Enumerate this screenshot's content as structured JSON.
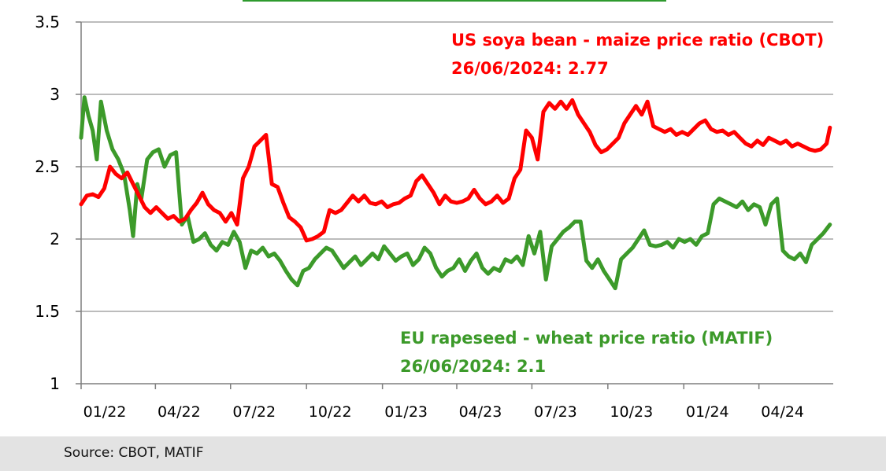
{
  "source_text": "Source: CBOT, MATIF",
  "chart_data": {
    "type": "line",
    "ylim": [
      1,
      3.5
    ],
    "yticks": [
      "1",
      "1.5",
      "2",
      "2.5",
      "3",
      "3.5"
    ],
    "ytick_values": [
      1,
      1.5,
      2,
      2.5,
      3,
      3.5
    ],
    "xlim": [
      "2022-01-01",
      "2024-06-30"
    ],
    "xticks": [
      "01/22",
      "04/22",
      "07/22",
      "10/22",
      "01/23",
      "04/23",
      "07/23",
      "10/23",
      "01/24",
      "04/24"
    ],
    "xtick_dates": [
      "2022-01-01",
      "2022-04-01",
      "2022-07-01",
      "2022-10-01",
      "2023-01-01",
      "2023-04-01",
      "2023-07-01",
      "2023-10-01",
      "2024-01-01",
      "2024-04-01"
    ],
    "grid": "horizontal",
    "annotations": [
      {
        "series": "us",
        "line1": "US soya bean - maize price ratio (CBOT)",
        "line2": "26/06/2024: 2.77"
      },
      {
        "series": "eu",
        "line1": "EU rapeseed - wheat price ratio (MATIF)",
        "line2": "26/06/2024: 2.1"
      }
    ],
    "series": [
      {
        "key": "us",
        "color": "#ff0000",
        "points": [
          [
            "2022-01-01",
            2.24
          ],
          [
            "2022-01-08",
            2.3
          ],
          [
            "2022-01-15",
            2.31
          ],
          [
            "2022-01-22",
            2.29
          ],
          [
            "2022-01-29",
            2.35
          ],
          [
            "2022-02-05",
            2.5
          ],
          [
            "2022-02-12",
            2.45
          ],
          [
            "2022-02-19",
            2.42
          ],
          [
            "2022-02-26",
            2.46
          ],
          [
            "2022-03-05",
            2.38
          ],
          [
            "2022-03-12",
            2.3
          ],
          [
            "2022-03-19",
            2.22
          ],
          [
            "2022-03-26",
            2.18
          ],
          [
            "2022-04-02",
            2.22
          ],
          [
            "2022-04-09",
            2.18
          ],
          [
            "2022-04-16",
            2.14
          ],
          [
            "2022-04-23",
            2.16
          ],
          [
            "2022-04-30",
            2.12
          ],
          [
            "2022-05-07",
            2.14
          ],
          [
            "2022-05-14",
            2.2
          ],
          [
            "2022-05-21",
            2.25
          ],
          [
            "2022-05-28",
            2.32
          ],
          [
            "2022-06-04",
            2.24
          ],
          [
            "2022-06-11",
            2.2
          ],
          [
            "2022-06-18",
            2.18
          ],
          [
            "2022-06-25",
            2.12
          ],
          [
            "2022-07-02",
            2.18
          ],
          [
            "2022-07-09",
            2.1
          ],
          [
            "2022-07-16",
            2.42
          ],
          [
            "2022-07-23",
            2.5
          ],
          [
            "2022-07-30",
            2.64
          ],
          [
            "2022-08-06",
            2.68
          ],
          [
            "2022-08-13",
            2.72
          ],
          [
            "2022-08-20",
            2.38
          ],
          [
            "2022-08-27",
            2.36
          ],
          [
            "2022-09-03",
            2.25
          ],
          [
            "2022-09-10",
            2.15
          ],
          [
            "2022-09-17",
            2.12
          ],
          [
            "2022-09-24",
            2.08
          ],
          [
            "2022-10-01",
            1.99
          ],
          [
            "2022-10-08",
            2.0
          ],
          [
            "2022-10-15",
            2.02
          ],
          [
            "2022-10-22",
            2.05
          ],
          [
            "2022-10-29",
            2.2
          ],
          [
            "2022-11-05",
            2.18
          ],
          [
            "2022-11-12",
            2.2
          ],
          [
            "2022-11-19",
            2.25
          ],
          [
            "2022-11-26",
            2.3
          ],
          [
            "2022-12-03",
            2.26
          ],
          [
            "2022-12-10",
            2.3
          ],
          [
            "2022-12-17",
            2.25
          ],
          [
            "2022-12-24",
            2.24
          ],
          [
            "2022-12-31",
            2.26
          ],
          [
            "2023-01-07",
            2.22
          ],
          [
            "2023-01-14",
            2.24
          ],
          [
            "2023-01-21",
            2.25
          ],
          [
            "2023-01-28",
            2.28
          ],
          [
            "2023-02-04",
            2.3
          ],
          [
            "2023-02-11",
            2.4
          ],
          [
            "2023-02-18",
            2.44
          ],
          [
            "2023-02-25",
            2.38
          ],
          [
            "2023-03-04",
            2.32
          ],
          [
            "2023-03-11",
            2.24
          ],
          [
            "2023-03-18",
            2.3
          ],
          [
            "2023-03-25",
            2.26
          ],
          [
            "2023-04-01",
            2.25
          ],
          [
            "2023-04-08",
            2.26
          ],
          [
            "2023-04-15",
            2.28
          ],
          [
            "2023-04-22",
            2.34
          ],
          [
            "2023-04-29",
            2.28
          ],
          [
            "2023-05-06",
            2.24
          ],
          [
            "2023-05-13",
            2.26
          ],
          [
            "2023-05-20",
            2.3
          ],
          [
            "2023-05-27",
            2.25
          ],
          [
            "2023-06-03",
            2.28
          ],
          [
            "2023-06-10",
            2.42
          ],
          [
            "2023-06-17",
            2.48
          ],
          [
            "2023-06-24",
            2.75
          ],
          [
            "2023-07-01",
            2.7
          ],
          [
            "2023-07-08",
            2.55
          ],
          [
            "2023-07-15",
            2.88
          ],
          [
            "2023-07-22",
            2.94
          ],
          [
            "2023-07-29",
            2.9
          ],
          [
            "2023-08-05",
            2.95
          ],
          [
            "2023-08-12",
            2.9
          ],
          [
            "2023-08-19",
            2.96
          ],
          [
            "2023-08-26",
            2.86
          ],
          [
            "2023-09-02",
            2.8
          ],
          [
            "2023-09-09",
            2.74
          ],
          [
            "2023-09-16",
            2.65
          ],
          [
            "2023-09-23",
            2.6
          ],
          [
            "2023-09-30",
            2.62
          ],
          [
            "2023-10-07",
            2.66
          ],
          [
            "2023-10-14",
            2.7
          ],
          [
            "2023-10-21",
            2.8
          ],
          [
            "2023-10-28",
            2.86
          ],
          [
            "2023-11-04",
            2.92
          ],
          [
            "2023-11-11",
            2.86
          ],
          [
            "2023-11-18",
            2.95
          ],
          [
            "2023-11-25",
            2.78
          ],
          [
            "2023-12-02",
            2.76
          ],
          [
            "2023-12-09",
            2.74
          ],
          [
            "2023-12-16",
            2.76
          ],
          [
            "2023-12-23",
            2.72
          ],
          [
            "2023-12-30",
            2.74
          ],
          [
            "2024-01-06",
            2.72
          ],
          [
            "2024-01-13",
            2.76
          ],
          [
            "2024-01-20",
            2.8
          ],
          [
            "2024-01-27",
            2.82
          ],
          [
            "2024-02-03",
            2.76
          ],
          [
            "2024-02-10",
            2.74
          ],
          [
            "2024-02-17",
            2.75
          ],
          [
            "2024-02-24",
            2.72
          ],
          [
            "2024-03-02",
            2.74
          ],
          [
            "2024-03-09",
            2.7
          ],
          [
            "2024-03-16",
            2.66
          ],
          [
            "2024-03-23",
            2.64
          ],
          [
            "2024-03-30",
            2.68
          ],
          [
            "2024-04-06",
            2.65
          ],
          [
            "2024-04-13",
            2.7
          ],
          [
            "2024-04-20",
            2.68
          ],
          [
            "2024-04-27",
            2.66
          ],
          [
            "2024-05-04",
            2.68
          ],
          [
            "2024-05-11",
            2.64
          ],
          [
            "2024-05-18",
            2.66
          ],
          [
            "2024-05-25",
            2.64
          ],
          [
            "2024-06-01",
            2.62
          ],
          [
            "2024-06-08",
            2.61
          ],
          [
            "2024-06-15",
            2.62
          ],
          [
            "2024-06-22",
            2.66
          ],
          [
            "2024-06-26",
            2.77
          ]
        ]
      },
      {
        "key": "eu",
        "color": "#3c9a2a",
        "points": [
          [
            "2022-01-01",
            2.7
          ],
          [
            "2022-01-05",
            2.98
          ],
          [
            "2022-01-10",
            2.85
          ],
          [
            "2022-01-15",
            2.75
          ],
          [
            "2022-01-20",
            2.55
          ],
          [
            "2022-01-25",
            2.95
          ],
          [
            "2022-02-01",
            2.75
          ],
          [
            "2022-02-08",
            2.62
          ],
          [
            "2022-02-15",
            2.55
          ],
          [
            "2022-02-22",
            2.45
          ],
          [
            "2022-03-01",
            2.2
          ],
          [
            "2022-03-05",
            2.02
          ],
          [
            "2022-03-10",
            2.38
          ],
          [
            "2022-03-15",
            2.28
          ],
          [
            "2022-03-22",
            2.55
          ],
          [
            "2022-03-29",
            2.6
          ],
          [
            "2022-04-05",
            2.62
          ],
          [
            "2022-04-12",
            2.5
          ],
          [
            "2022-04-19",
            2.58
          ],
          [
            "2022-04-26",
            2.6
          ],
          [
            "2022-05-03",
            2.1
          ],
          [
            "2022-05-10",
            2.16
          ],
          [
            "2022-05-17",
            1.98
          ],
          [
            "2022-05-24",
            2.0
          ],
          [
            "2022-05-31",
            2.04
          ],
          [
            "2022-06-07",
            1.96
          ],
          [
            "2022-06-14",
            1.92
          ],
          [
            "2022-06-21",
            1.98
          ],
          [
            "2022-06-28",
            1.96
          ],
          [
            "2022-07-05",
            2.05
          ],
          [
            "2022-07-12",
            1.98
          ],
          [
            "2022-07-19",
            1.8
          ],
          [
            "2022-07-26",
            1.92
          ],
          [
            "2022-08-02",
            1.9
          ],
          [
            "2022-08-09",
            1.94
          ],
          [
            "2022-08-16",
            1.88
          ],
          [
            "2022-08-23",
            1.9
          ],
          [
            "2022-08-30",
            1.85
          ],
          [
            "2022-09-06",
            1.78
          ],
          [
            "2022-09-13",
            1.72
          ],
          [
            "2022-09-20",
            1.68
          ],
          [
            "2022-09-27",
            1.78
          ],
          [
            "2022-10-04",
            1.8
          ],
          [
            "2022-10-11",
            1.86
          ],
          [
            "2022-10-18",
            1.9
          ],
          [
            "2022-10-25",
            1.94
          ],
          [
            "2022-11-01",
            1.92
          ],
          [
            "2022-11-08",
            1.86
          ],
          [
            "2022-11-15",
            1.8
          ],
          [
            "2022-11-22",
            1.84
          ],
          [
            "2022-11-29",
            1.88
          ],
          [
            "2022-12-06",
            1.82
          ],
          [
            "2022-12-13",
            1.86
          ],
          [
            "2022-12-20",
            1.9
          ],
          [
            "2022-12-27",
            1.86
          ],
          [
            "2023-01-03",
            1.95
          ],
          [
            "2023-01-10",
            1.9
          ],
          [
            "2023-01-17",
            1.85
          ],
          [
            "2023-01-24",
            1.88
          ],
          [
            "2023-01-31",
            1.9
          ],
          [
            "2023-02-07",
            1.82
          ],
          [
            "2023-02-14",
            1.86
          ],
          [
            "2023-02-21",
            1.94
          ],
          [
            "2023-02-28",
            1.9
          ],
          [
            "2023-03-07",
            1.8
          ],
          [
            "2023-03-14",
            1.74
          ],
          [
            "2023-03-21",
            1.78
          ],
          [
            "2023-03-28",
            1.8
          ],
          [
            "2023-04-04",
            1.86
          ],
          [
            "2023-04-11",
            1.78
          ],
          [
            "2023-04-18",
            1.85
          ],
          [
            "2023-04-25",
            1.9
          ],
          [
            "2023-05-02",
            1.8
          ],
          [
            "2023-05-09",
            1.76
          ],
          [
            "2023-05-16",
            1.8
          ],
          [
            "2023-05-23",
            1.78
          ],
          [
            "2023-05-30",
            1.86
          ],
          [
            "2023-06-06",
            1.84
          ],
          [
            "2023-06-13",
            1.88
          ],
          [
            "2023-06-20",
            1.82
          ],
          [
            "2023-06-27",
            2.02
          ],
          [
            "2023-07-04",
            1.9
          ],
          [
            "2023-07-11",
            2.05
          ],
          [
            "2023-07-18",
            1.72
          ],
          [
            "2023-07-25",
            1.95
          ],
          [
            "2023-08-01",
            2.0
          ],
          [
            "2023-08-08",
            2.05
          ],
          [
            "2023-08-15",
            2.08
          ],
          [
            "2023-08-22",
            2.12
          ],
          [
            "2023-08-29",
            2.12
          ],
          [
            "2023-09-05",
            1.85
          ],
          [
            "2023-09-12",
            1.8
          ],
          [
            "2023-09-19",
            1.86
          ],
          [
            "2023-09-26",
            1.78
          ],
          [
            "2023-10-03",
            1.72
          ],
          [
            "2023-10-10",
            1.66
          ],
          [
            "2023-10-17",
            1.86
          ],
          [
            "2023-10-24",
            1.9
          ],
          [
            "2023-10-31",
            1.94
          ],
          [
            "2023-11-07",
            2.0
          ],
          [
            "2023-11-14",
            2.06
          ],
          [
            "2023-11-21",
            1.96
          ],
          [
            "2023-11-28",
            1.95
          ],
          [
            "2023-12-05",
            1.96
          ],
          [
            "2023-12-12",
            1.98
          ],
          [
            "2023-12-19",
            1.94
          ],
          [
            "2023-12-26",
            2.0
          ],
          [
            "2024-01-02",
            1.98
          ],
          [
            "2024-01-09",
            2.0
          ],
          [
            "2024-01-16",
            1.96
          ],
          [
            "2024-01-23",
            2.02
          ],
          [
            "2024-01-30",
            2.04
          ],
          [
            "2024-02-06",
            2.24
          ],
          [
            "2024-02-13",
            2.28
          ],
          [
            "2024-02-20",
            2.26
          ],
          [
            "2024-02-27",
            2.24
          ],
          [
            "2024-03-05",
            2.22
          ],
          [
            "2024-03-12",
            2.26
          ],
          [
            "2024-03-19",
            2.2
          ],
          [
            "2024-03-26",
            2.24
          ],
          [
            "2024-04-02",
            2.22
          ],
          [
            "2024-04-09",
            2.1
          ],
          [
            "2024-04-16",
            2.24
          ],
          [
            "2024-04-23",
            2.28
          ],
          [
            "2024-04-30",
            1.92
          ],
          [
            "2024-05-07",
            1.88
          ],
          [
            "2024-05-14",
            1.86
          ],
          [
            "2024-05-21",
            1.9
          ],
          [
            "2024-05-28",
            1.84
          ],
          [
            "2024-06-04",
            1.96
          ],
          [
            "2024-06-11",
            2.0
          ],
          [
            "2024-06-18",
            2.04
          ],
          [
            "2024-06-26",
            2.1
          ]
        ]
      }
    ]
  }
}
